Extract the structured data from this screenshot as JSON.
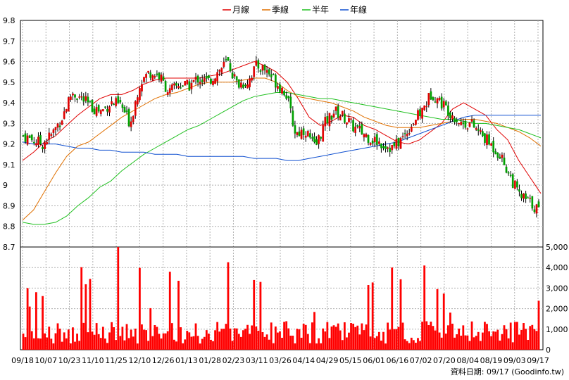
{
  "chart_data": {
    "type": "candlestick",
    "legend": {
      "placement": "top-center",
      "entries": [
        {
          "name": "月線",
          "color": "#e00000"
        },
        {
          "name": "季線",
          "color": "#e07000"
        },
        {
          "name": "半年",
          "color": "#20c020"
        },
        {
          "name": "年線",
          "color": "#1050d0"
        }
      ]
    },
    "price_axis": {
      "ylim": [
        8.7,
        9.8
      ],
      "ticks": [
        "8.7",
        "8.8",
        "8.9",
        "9",
        "9.1",
        "9.2",
        "9.3",
        "9.4",
        "9.5",
        "9.6",
        "9.7",
        "9.8"
      ]
    },
    "volume_axis": {
      "ylim": [
        0,
        5000
      ],
      "ticks": [
        "0",
        "1,000",
        "2,000",
        "3,000",
        "4,000",
        "5,000"
      ]
    },
    "x_ticks": [
      "09/18",
      "10/07",
      "10/23",
      "11/10",
      "11/25",
      "12/10",
      "12/26",
      "01/13",
      "01/28",
      "02/23",
      "03/11",
      "03/26",
      "04/14",
      "04/29",
      "05/15",
      "06/01",
      "06/16",
      "07/02",
      "07/20",
      "08/04",
      "08/19",
      "09/03",
      "09/17"
    ],
    "grid": true,
    "ma_lines": {
      "月線": [
        9.12,
        9.16,
        9.21,
        9.24,
        9.29,
        9.34,
        9.38,
        9.42,
        9.44,
        9.44,
        9.46,
        9.49,
        9.51,
        9.52,
        9.52,
        9.52,
        9.52,
        9.53,
        9.54,
        9.56,
        9.58,
        9.6,
        9.58,
        9.55,
        9.5,
        9.42,
        9.33,
        9.29,
        9.31,
        9.34,
        9.33,
        9.29,
        9.27,
        9.24,
        9.21,
        9.2,
        9.22,
        9.26,
        9.3,
        9.37,
        9.4,
        9.37,
        9.34,
        9.27,
        9.22,
        9.12,
        9.04,
        8.96
      ],
      "季線": [
        8.83,
        8.88,
        8.97,
        9.06,
        9.14,
        9.19,
        9.21,
        9.25,
        9.29,
        9.33,
        9.36,
        9.39,
        9.42,
        9.44,
        9.45,
        9.47,
        9.49,
        9.5,
        9.5,
        9.5,
        9.51,
        9.52,
        9.52,
        9.5,
        9.46,
        9.43,
        9.42,
        9.41,
        9.4,
        9.38,
        9.36,
        9.33,
        9.31,
        9.29,
        9.28,
        9.28,
        9.28,
        9.29,
        9.3,
        9.31,
        9.32,
        9.32,
        9.31,
        9.3,
        9.28,
        9.26,
        9.23,
        9.19
      ],
      "半年": [
        8.82,
        8.81,
        8.81,
        8.82,
        8.85,
        8.9,
        8.94,
        8.99,
        9.02,
        9.07,
        9.11,
        9.15,
        9.18,
        9.21,
        9.24,
        9.27,
        9.29,
        9.32,
        9.35,
        9.38,
        9.41,
        9.43,
        9.44,
        9.45,
        9.45,
        9.44,
        9.43,
        9.42,
        9.42,
        9.41,
        9.4,
        9.39,
        9.38,
        9.37,
        9.36,
        9.35,
        9.34,
        9.33,
        9.32,
        9.32,
        9.31,
        9.3,
        9.3,
        9.29,
        9.28,
        9.27,
        9.25,
        9.23
      ],
      "年線": [
        9.21,
        9.2,
        9.2,
        9.2,
        9.19,
        9.18,
        9.18,
        9.17,
        9.17,
        9.16,
        9.16,
        9.16,
        9.15,
        9.15,
        9.15,
        9.14,
        9.14,
        9.14,
        9.14,
        9.14,
        9.14,
        9.13,
        9.13,
        9.13,
        9.12,
        9.12,
        9.13,
        9.14,
        9.15,
        9.16,
        9.17,
        9.18,
        9.19,
        9.2,
        9.21,
        9.23,
        9.25,
        9.27,
        9.29,
        9.31,
        9.33,
        9.34,
        9.34,
        9.34,
        9.34,
        9.34,
        9.34,
        9.34
      ]
    },
    "candles": {
      "close": [
        9.24,
        9.22,
        9.2,
        9.25,
        9.33,
        9.45,
        9.42,
        9.38,
        9.36,
        9.4,
        9.39,
        9.3,
        9.5,
        9.55,
        9.53,
        9.45,
        9.49,
        9.48,
        9.52,
        9.5,
        9.55,
        9.6,
        9.49,
        9.5,
        9.58,
        9.56,
        9.5,
        9.45,
        9.25,
        9.27,
        9.18,
        9.3,
        9.36,
        9.33,
        9.28,
        9.25,
        9.22,
        9.2,
        9.18,
        9.23,
        9.3,
        9.36,
        9.45,
        9.4,
        9.35,
        9.3,
        9.3,
        9.25,
        9.2,
        9.15,
        9.05,
        8.95,
        8.92,
        8.88
      ]
    }
  },
  "footer": {
    "date_label": "資料日期: 09/17",
    "source": "(Goodinfo.tw)"
  }
}
